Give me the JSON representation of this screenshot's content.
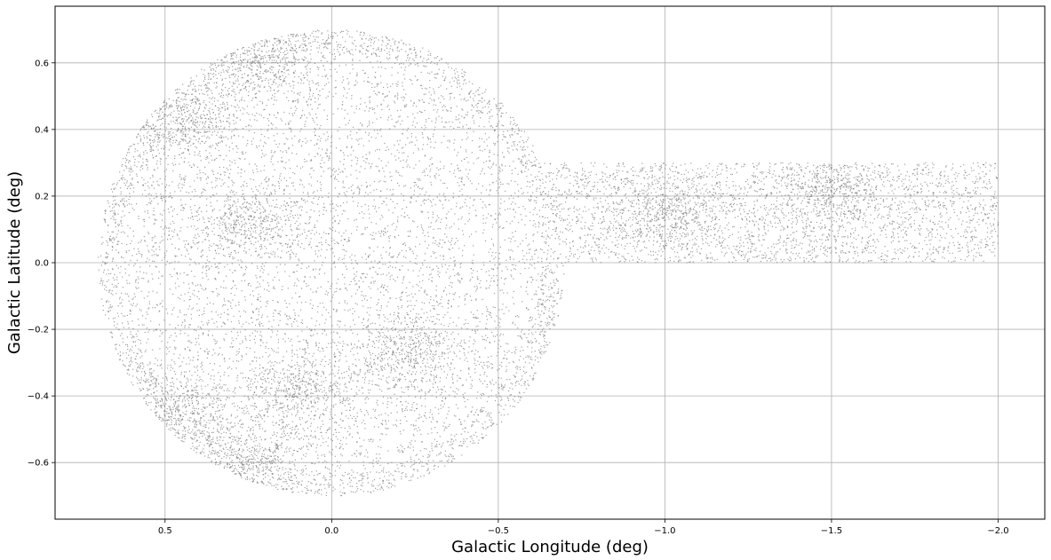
{
  "chart_data": {
    "type": "scatter",
    "title": "",
    "xlabel": "Galactic Longitude (deg)",
    "ylabel": "Galactic Latitude (deg)",
    "xlim": [
      0.83,
      -2.14
    ],
    "ylim": [
      -0.77,
      0.77
    ],
    "x_inverted": true,
    "grid": true,
    "marker_color": "#7f7f7f",
    "xticks": [
      0.5,
      0.0,
      -0.5,
      -1.0,
      -1.5,
      -2.0
    ],
    "xtick_labels": [
      "0.5",
      "0.0",
      "−0.5",
      "−1.0",
      "−1.5",
      "−2.0"
    ],
    "yticks": [
      0.6,
      0.4,
      0.2,
      0.0,
      -0.2,
      -0.4,
      -0.6
    ],
    "ytick_labels": [
      "0.6",
      "0.4",
      "0.2",
      "0.0",
      "−0.2",
      "−0.4",
      "−0.6"
    ],
    "regions": [
      {
        "shape": "circle",
        "center_l": 0.0,
        "center_b": 0.0,
        "radius": 0.7
      },
      {
        "shape": "rectangle",
        "l_range": [
          -2.0,
          0.0
        ],
        "b_range": [
          0.0,
          0.3
        ]
      }
    ],
    "dense_clumps": [
      {
        "l": 0.45,
        "b": 0.42
      },
      {
        "l": 0.2,
        "b": 0.6
      },
      {
        "l": 0.25,
        "b": 0.12
      },
      {
        "l": -0.22,
        "b": -0.27
      },
      {
        "l": 0.1,
        "b": -0.38
      },
      {
        "l": 0.45,
        "b": -0.45
      },
      {
        "l": 0.25,
        "b": -0.6
      },
      {
        "l": -1.5,
        "b": 0.22
      },
      {
        "l": -1.0,
        "b": 0.15
      }
    ]
  }
}
